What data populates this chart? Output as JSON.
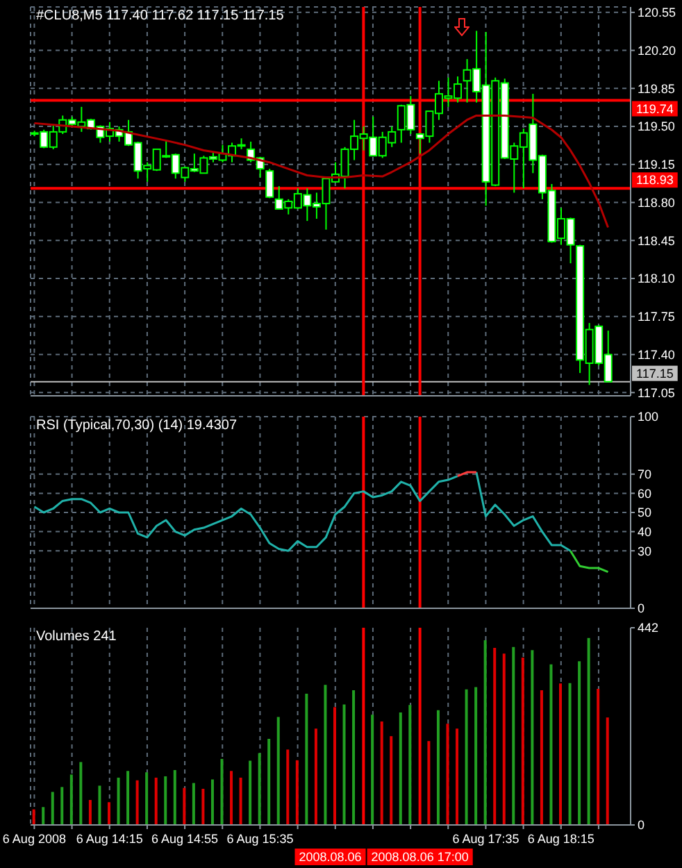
{
  "chart_data": [
    {
      "type": "candlestick",
      "title": "#CLU8,M5 117.40 117.62 117.15 117.15",
      "x": [
        "2008-08-06T13:35",
        "2008-08-06T13:40",
        "2008-08-06T13:45",
        "2008-08-06T13:50",
        "2008-08-06T13:55",
        "2008-08-06T14:00",
        "2008-08-06T14:05",
        "2008-08-06T14:10",
        "2008-08-06T14:15",
        "2008-08-06T14:20",
        "2008-08-06T14:25",
        "2008-08-06T14:30",
        "2008-08-06T14:35",
        "2008-08-06T14:40",
        "2008-08-06T14:45",
        "2008-08-06T14:50",
        "2008-08-06T14:55",
        "2008-08-06T15:00",
        "2008-08-06T15:05",
        "2008-08-06T15:10",
        "2008-08-06T15:15",
        "2008-08-06T15:20",
        "2008-08-06T15:25",
        "2008-08-06T15:30",
        "2008-08-06T15:35",
        "2008-08-06T15:40",
        "2008-08-06T15:45",
        "2008-08-06T15:50",
        "2008-08-06T15:55",
        "2008-08-06T16:00",
        "2008-08-06T16:05",
        "2008-08-06T16:10",
        "2008-08-06T16:15",
        "2008-08-06T16:20",
        "2008-08-06T16:25",
        "2008-08-06T16:30",
        "2008-08-06T16:35",
        "2008-08-06T16:40",
        "2008-08-06T16:45",
        "2008-08-06T16:50",
        "2008-08-06T16:55",
        "2008-08-06T17:00",
        "2008-08-06T17:05",
        "2008-08-06T17:10",
        "2008-08-06T17:15",
        "2008-08-06T17:20",
        "2008-08-06T17:25",
        "2008-08-06T17:30",
        "2008-08-06T17:35",
        "2008-08-06T17:40",
        "2008-08-06T17:45",
        "2008-08-06T17:50",
        "2008-08-06T17:55",
        "2008-08-06T18:00",
        "2008-08-06T18:05",
        "2008-08-06T18:10",
        "2008-08-06T18:15",
        "2008-08-06T18:20",
        "2008-08-06T18:25",
        "2008-08-06T18:30",
        "2008-08-06T18:35",
        "2008-08-06T18:40"
      ],
      "ohlc": [
        [
          119.44,
          119.46,
          119.41,
          119.43
        ],
        [
          119.45,
          119.47,
          119.3,
          119.31
        ],
        [
          119.31,
          119.51,
          119.29,
          119.45
        ],
        [
          119.45,
          119.6,
          119.43,
          119.56
        ],
        [
          119.56,
          119.59,
          119.5,
          119.52
        ],
        [
          119.5,
          119.68,
          119.45,
          119.54
        ],
        [
          119.56,
          119.57,
          119.47,
          119.48
        ],
        [
          119.5,
          119.51,
          119.35,
          119.4
        ],
        [
          119.41,
          119.54,
          119.36,
          119.48
        ],
        [
          119.47,
          119.5,
          119.36,
          119.41
        ],
        [
          119.45,
          119.56,
          119.32,
          119.33
        ],
        [
          119.35,
          119.36,
          119.02,
          119.09
        ],
        [
          119.11,
          119.17,
          118.99,
          119.14
        ],
        [
          119.1,
          119.29,
          119.09,
          119.29
        ],
        [
          119.23,
          119.37,
          119.21,
          119.23
        ],
        [
          119.24,
          119.25,
          119.02,
          119.07
        ],
        [
          119.03,
          119.13,
          118.99,
          119.12
        ],
        [
          119.11,
          119.25,
          119.08,
          119.09
        ],
        [
          119.07,
          119.23,
          119.07,
          119.21
        ],
        [
          119.22,
          119.27,
          119.17,
          119.2
        ],
        [
          119.19,
          119.33,
          119.17,
          119.25
        ],
        [
          119.23,
          119.35,
          119.17,
          119.32
        ],
        [
          119.33,
          119.39,
          119.29,
          119.32
        ],
        [
          119.29,
          119.36,
          119.17,
          119.19
        ],
        [
          119.21,
          119.22,
          119.03,
          119.11
        ],
        [
          119.09,
          119.11,
          118.84,
          118.85
        ],
        [
          118.83,
          118.95,
          118.74,
          118.74
        ],
        [
          118.75,
          118.83,
          118.69,
          118.81
        ],
        [
          118.75,
          118.93,
          118.74,
          118.88
        ],
        [
          118.87,
          118.93,
          118.63,
          118.77
        ],
        [
          118.79,
          118.89,
          118.65,
          118.76
        ],
        [
          118.79,
          119.03,
          118.55,
          119.02
        ],
        [
          118.99,
          119.17,
          118.99,
          119.06
        ],
        [
          119.04,
          119.31,
          118.93,
          119.29
        ],
        [
          119.29,
          119.56,
          119.19,
          119.41
        ],
        [
          119.39,
          119.5,
          119.28,
          119.43
        ],
        [
          119.4,
          119.59,
          119.23,
          119.23
        ],
        [
          119.23,
          119.45,
          119.21,
          119.4
        ],
        [
          119.35,
          119.5,
          119.31,
          119.45
        ],
        [
          119.47,
          119.7,
          119.35,
          119.69
        ],
        [
          119.7,
          119.78,
          119.43,
          119.47
        ],
        [
          119.43,
          119.44,
          119.25,
          119.39
        ],
        [
          119.41,
          119.64,
          119.35,
          119.64
        ],
        [
          119.62,
          119.92,
          119.56,
          119.8
        ],
        [
          119.76,
          119.95,
          119.68,
          119.78
        ],
        [
          119.76,
          119.96,
          119.72,
          119.89
        ],
        [
          119.92,
          120.12,
          119.72,
          120.02
        ],
        [
          120.03,
          120.38,
          119.72,
          119.82
        ],
        [
          119.88,
          120.37,
          118.77,
          118.99
        ],
        [
          118.96,
          119.95,
          118.95,
          119.92
        ],
        [
          119.9,
          119.94,
          119.2,
          119.21
        ],
        [
          119.2,
          119.35,
          118.89,
          119.32
        ],
        [
          119.31,
          119.48,
          118.93,
          119.44
        ],
        [
          119.52,
          119.8,
          119.07,
          119.19
        ],
        [
          119.23,
          119.24,
          118.83,
          118.89
        ],
        [
          118.91,
          118.97,
          118.43,
          118.44
        ],
        [
          118.47,
          118.75,
          118.41,
          118.65
        ],
        [
          118.65,
          118.66,
          118.24,
          118.41
        ],
        [
          118.4,
          118.41,
          117.23,
          117.35
        ],
        [
          117.32,
          117.69,
          117.12,
          117.63
        ],
        [
          117.66,
          117.67,
          117.3,
          117.32
        ],
        [
          117.4,
          117.62,
          117.15,
          117.15
        ]
      ],
      "color": "#00ff00",
      "colors": [
        "#ffffff",
        "#ffffff",
        "#000000",
        "#000000",
        "#ffffff",
        "#000000",
        "#ffffff",
        "#ffffff",
        "#000000",
        "#ffffff",
        "#ffffff",
        "#ffffff",
        "#000000",
        "#000000",
        "#000000",
        "#ffffff",
        "#000000",
        "#ffffff",
        "#000000",
        "#ffffff",
        "#000000",
        "#000000",
        "#ffffff",
        "#ffffff",
        "#ffffff",
        "#ffffff",
        "#ffffff",
        "#000000",
        "#000000",
        "#ffffff",
        "#ffffff",
        "#000000",
        "#000000",
        "#000000",
        "#000000",
        "#000000",
        "#ffffff",
        "#000000",
        "#000000",
        "#000000",
        "#ffffff",
        "#ffffff",
        "#000000",
        "#000000",
        "#000000",
        "#000000",
        "#000000",
        "#ffffff",
        "#ffffff",
        "#000000",
        "#ffffff",
        "#000000",
        "#000000",
        "#ffffff",
        "#ffffff",
        "#ffffff",
        "#000000",
        "#ffffff",
        "#ffffff",
        "#000000",
        "#ffffff",
        "#ffffff"
      ],
      "series": [
        {
          "type": "line",
          "color": "#b40000",
          "x": [
            "2008-08-06T13:35",
            "2008-08-06T13:55",
            "2008-08-06T14:20",
            "2008-08-06T14:45",
            "2008-08-06T14:55",
            "2008-08-06T15:05",
            "2008-08-06T15:30",
            "2008-08-06T15:40",
            "2008-08-06T15:50",
            "2008-08-06T16:00",
            "2008-08-06T16:10",
            "2008-08-06T16:20",
            "2008-08-06T16:30",
            "2008-08-06T16:40",
            "2008-08-06T16:45",
            "2008-08-06T16:55",
            "2008-08-06T17:05",
            "2008-08-06T17:15",
            "2008-08-06T17:25",
            "2008-08-06T17:30",
            "2008-08-06T17:45",
            "2008-08-06T18:00",
            "2008-08-06T18:10",
            "2008-08-06T18:15",
            "2008-08-06T18:20",
            "2008-08-06T18:25",
            "2008-08-06T18:30",
            "2008-08-06T18:35",
            "2008-08-06T18:40"
          ],
          "values": [
            119.53,
            119.5,
            119.46,
            119.37,
            119.33,
            119.28,
            119.21,
            119.17,
            119.11,
            119.05,
            119.03,
            119.03,
            119.05,
            119.04,
            119.08,
            119.17,
            119.28,
            119.43,
            119.56,
            119.6,
            119.6,
            119.58,
            119.47,
            119.4,
            119.28,
            119.14,
            118.98,
            118.8,
            118.57
          ]
        }
      ],
      "xlim": [
        "2008-08-06T13:33",
        "2008-08-06T18:52"
      ],
      "xticks": [
        {
          "value": "2008-08-06T13:35",
          "label": null
        },
        {
          "value": "2008-08-06T13:55",
          "label": null
        },
        {
          "value": "2008-08-06T14:15",
          "label": null
        },
        {
          "value": "2008-08-06T14:35",
          "label": null
        },
        {
          "value": "2008-08-06T14:55",
          "label": null
        },
        {
          "value": "2008-08-06T15:15",
          "label": null
        },
        {
          "value": "2008-08-06T15:35",
          "label": null
        },
        {
          "value": "2008-08-06T15:55",
          "label": null
        },
        {
          "value": "2008-08-06T16:15",
          "label": null
        },
        {
          "value": "2008-08-06T16:35",
          "label": null
        },
        {
          "value": "2008-08-06T16:55",
          "label": null
        },
        {
          "value": "2008-08-06T17:15",
          "label": null
        },
        {
          "value": "2008-08-06T17:35",
          "label": null
        },
        {
          "value": "2008-08-06T17:55",
          "label": null
        },
        {
          "value": "2008-08-06T18:15",
          "label": null
        },
        {
          "value": "2008-08-06T18:35",
          "label": null
        }
      ],
      "ylim": [
        117.02,
        120.6
      ],
      "yticks": [
        117.05,
        {
          "value": 117.4,
          "label": "117.40"
        },
        117.75,
        {
          "value": 118.1,
          "label": "118.10"
        },
        118.45,
        {
          "value": 118.8,
          "label": "118.80"
        },
        119.15,
        {
          "value": 119.5,
          "label": "119.50"
        },
        119.85,
        {
          "value": 120.2,
          "label": "120.20"
        },
        120.55
      ],
      "ref_lines": [
        {
          "axis": "y",
          "value": 119.74,
          "label": "119.74",
          "color": "#ff0000"
        },
        {
          "axis": "y",
          "value": 118.93,
          "label": "118.93",
          "color": "#ff0000"
        },
        {
          "axis": "y",
          "value": 117.15,
          "label": "117.15",
          "color": "#c0c0c0"
        },
        {
          "axis": "x",
          "value": "2008-08-06T16:30",
          "color": "#ff0000"
        },
        {
          "axis": "x",
          "value": "2008-08-06T17:00",
          "color": "#ff0000"
        }
      ],
      "grid": true,
      "tick_labels": "y",
      "marker": "none"
    },
    {
      "type": "line",
      "title": "RSI (Typical,70,30) (14) 19.4307",
      "x": [
        "2008-08-06T13:35",
        "2008-08-06T13:40",
        "2008-08-06T13:45",
        "2008-08-06T13:50",
        "2008-08-06T13:55",
        "2008-08-06T14:00",
        "2008-08-06T14:05",
        "2008-08-06T14:10",
        "2008-08-06T14:15",
        "2008-08-06T14:20",
        "2008-08-06T14:25",
        "2008-08-06T14:30",
        "2008-08-06T14:35",
        "2008-08-06T14:40",
        "2008-08-06T14:45",
        "2008-08-06T14:50",
        "2008-08-06T14:55",
        "2008-08-06T15:00",
        "2008-08-06T15:05",
        "2008-08-06T15:10",
        "2008-08-06T15:15",
        "2008-08-06T15:20",
        "2008-08-06T15:25",
        "2008-08-06T15:30",
        "2008-08-06T15:35",
        "2008-08-06T15:40",
        "2008-08-06T15:45",
        "2008-08-06T15:50",
        "2008-08-06T15:55",
        "2008-08-06T16:00",
        "2008-08-06T16:05",
        "2008-08-06T16:10",
        "2008-08-06T16:15",
        "2008-08-06T16:20",
        "2008-08-06T16:25",
        "2008-08-06T16:30",
        "2008-08-06T16:35",
        "2008-08-06T16:40",
        "2008-08-06T16:45",
        "2008-08-06T16:50",
        "2008-08-06T16:55",
        "2008-08-06T17:00",
        "2008-08-06T17:05",
        "2008-08-06T17:10",
        "2008-08-06T17:15",
        "2008-08-06T17:20",
        "2008-08-06T17:25",
        "2008-08-06T17:30",
        "2008-08-06T17:35",
        "2008-08-06T17:40",
        "2008-08-06T17:45",
        "2008-08-06T17:50",
        "2008-08-06T17:55",
        "2008-08-06T18:00",
        "2008-08-06T18:05",
        "2008-08-06T18:10",
        "2008-08-06T18:15",
        "2008-08-06T18:20",
        "2008-08-06T18:25",
        "2008-08-06T18:30",
        "2008-08-06T18:35",
        "2008-08-06T18:40"
      ],
      "series": [
        {
          "color": "#20b2aa",
          "values": [
            53,
            50,
            52,
            56,
            57,
            57,
            55,
            50,
            52,
            50,
            50,
            39,
            37,
            43,
            46,
            40,
            38,
            41,
            42,
            44,
            46,
            48,
            52,
            49,
            42,
            34,
            31,
            30,
            35,
            32,
            32,
            37,
            49,
            53,
            60,
            61,
            58,
            59,
            61,
            66,
            64,
            56,
            61,
            66,
            67,
            69,
            null,
            71,
            48,
            54,
            49,
            43,
            46,
            48,
            40,
            33,
            33,
            30,
            null,
            null,
            null,
            null
          ]
        },
        {
          "color": "#ff3c3c",
          "values": [
            null,
            null,
            null,
            null,
            null,
            null,
            null,
            null,
            null,
            null,
            null,
            null,
            null,
            null,
            null,
            null,
            null,
            null,
            null,
            null,
            null,
            null,
            null,
            null,
            null,
            null,
            null,
            null,
            null,
            null,
            null,
            null,
            null,
            null,
            null,
            null,
            null,
            null,
            null,
            null,
            null,
            null,
            null,
            null,
            null,
            69,
            71,
            71,
            null,
            null,
            null,
            null,
            null,
            null,
            null,
            null,
            null,
            null,
            null,
            null,
            null,
            null
          ]
        },
        {
          "color": "#32cd32",
          "values": [
            null,
            null,
            null,
            null,
            null,
            null,
            null,
            null,
            null,
            null,
            null,
            null,
            null,
            null,
            null,
            null,
            null,
            null,
            null,
            null,
            null,
            null,
            null,
            null,
            null,
            null,
            null,
            null,
            null,
            null,
            null,
            null,
            null,
            null,
            null,
            null,
            null,
            null,
            null,
            null,
            null,
            null,
            null,
            null,
            null,
            null,
            null,
            null,
            null,
            null,
            null,
            null,
            null,
            null,
            null,
            null,
            null,
            30,
            22,
            21,
            21,
            19
          ]
        }
      ],
      "xlim": [
        "2008-08-06T13:33",
        "2008-08-06T18:52"
      ],
      "xticks": [
        {
          "value": "2008-08-06T13:35",
          "label": null
        },
        {
          "value": "2008-08-06T13:55",
          "label": null
        },
        {
          "value": "2008-08-06T14:15",
          "label": null
        },
        {
          "value": "2008-08-06T14:35",
          "label": null
        },
        {
          "value": "2008-08-06T14:55",
          "label": null
        },
        {
          "value": "2008-08-06T15:15",
          "label": null
        },
        {
          "value": "2008-08-06T15:35",
          "label": null
        },
        {
          "value": "2008-08-06T15:55",
          "label": null
        },
        {
          "value": "2008-08-06T16:15",
          "label": null
        },
        {
          "value": "2008-08-06T16:35",
          "label": null
        },
        {
          "value": "2008-08-06T16:55",
          "label": null
        },
        {
          "value": "2008-08-06T17:15",
          "label": null
        },
        {
          "value": "2008-08-06T17:35",
          "label": null
        },
        {
          "value": "2008-08-06T17:55",
          "label": null
        },
        {
          "value": "2008-08-06T18:15",
          "label": null
        },
        {
          "value": "2008-08-06T18:35",
          "label": null
        }
      ],
      "ylim": [
        0,
        100
      ],
      "yticks": [
        0,
        30,
        40,
        50,
        60,
        70,
        100
      ],
      "ref_lines": [
        {
          "axis": "x",
          "value": "2008-08-06T16:30",
          "color": "#ff0000"
        },
        {
          "axis": "x",
          "value": "2008-08-06T17:00",
          "color": "#ff0000"
        }
      ],
      "grid": true,
      "tick_labels": "y",
      "marker": "none"
    },
    {
      "type": "bar",
      "title": "Volumes 241",
      "x": [
        "2008-08-06T13:35",
        "2008-08-06T13:40",
        "2008-08-06T13:45",
        "2008-08-06T13:50",
        "2008-08-06T13:55",
        "2008-08-06T14:00",
        "2008-08-06T14:05",
        "2008-08-06T14:10",
        "2008-08-06T14:15",
        "2008-08-06T14:20",
        "2008-08-06T14:25",
        "2008-08-06T14:30",
        "2008-08-06T14:35",
        "2008-08-06T14:40",
        "2008-08-06T14:45",
        "2008-08-06T14:50",
        "2008-08-06T14:55",
        "2008-08-06T15:00",
        "2008-08-06T15:05",
        "2008-08-06T15:10",
        "2008-08-06T15:15",
        "2008-08-06T15:20",
        "2008-08-06T15:25",
        "2008-08-06T15:30",
        "2008-08-06T15:35",
        "2008-08-06T15:40",
        "2008-08-06T15:45",
        "2008-08-06T15:50",
        "2008-08-06T15:55",
        "2008-08-06T16:00",
        "2008-08-06T16:05",
        "2008-08-06T16:10",
        "2008-08-06T16:15",
        "2008-08-06T16:20",
        "2008-08-06T16:25",
        "2008-08-06T16:30",
        "2008-08-06T16:35",
        "2008-08-06T16:40",
        "2008-08-06T16:45",
        "2008-08-06T16:50",
        "2008-08-06T16:55",
        "2008-08-06T17:00",
        "2008-08-06T17:05",
        "2008-08-06T17:10",
        "2008-08-06T17:15",
        "2008-08-06T17:20",
        "2008-08-06T17:25",
        "2008-08-06T17:30",
        "2008-08-06T17:35",
        "2008-08-06T17:40",
        "2008-08-06T17:45",
        "2008-08-06T17:50",
        "2008-08-06T17:55",
        "2008-08-06T18:00",
        "2008-08-06T18:05",
        "2008-08-06T18:10",
        "2008-08-06T18:15",
        "2008-08-06T18:20",
        "2008-08-06T18:25",
        "2008-08-06T18:30",
        "2008-08-06T18:35",
        "2008-08-06T18:40"
      ],
      "values": [
        35,
        40,
        74,
        85,
        113,
        141,
        56,
        88,
        51,
        106,
        121,
        100,
        118,
        106,
        109,
        123,
        83,
        94,
        81,
        102,
        148,
        121,
        106,
        144,
        161,
        193,
        242,
        169,
        145,
        294,
        216,
        314,
        264,
        270,
        302,
        null,
        247,
        232,
        199,
        252,
        269,
        null,
        188,
        257,
        227,
        216,
        304,
        309,
        414,
        397,
        384,
        399,
        375,
        392,
        302,
        360,
        317,
        318,
        367,
        419,
        305,
        241
      ],
      "colors": [
        "#e00000",
        "#22a022",
        "#22a022",
        "#22a022",
        "#22a022",
        "#22a022",
        "#e00000",
        "#22a022",
        "#e00000",
        "#22a022",
        "#22a022",
        "#e00000",
        "#22a022",
        "#e00000",
        "#22a022",
        "#22a022",
        "#e00000",
        "#22a022",
        "#e00000",
        "#22a022",
        "#22a022",
        "#e00000",
        "#e00000",
        "#22a022",
        "#22a022",
        "#22a022",
        "#22a022",
        "#e00000",
        "#e00000",
        "#22a022",
        "#e00000",
        "#22a022",
        "#e00000",
        "#22a022",
        "#22a022",
        null,
        "#22a022",
        "#e00000",
        "#e00000",
        "#22a022",
        "#22a022",
        null,
        "#e00000",
        "#22a022",
        "#e00000",
        "#e00000",
        "#22a022",
        "#22a022",
        "#22a022",
        "#e00000",
        "#e00000",
        "#22a022",
        "#e00000",
        "#22a022",
        "#e00000",
        "#22a022",
        "#e00000",
        "#22a022",
        "#22a022",
        "#22a022",
        "#e00000",
        "#e00000"
      ],
      "xlim": [
        "2008-08-06T13:33",
        "2008-08-06T18:52"
      ],
      "xticks": [
        {
          "value": "2008-08-06T13:35",
          "label": "6 Aug 2008"
        },
        {
          "value": "2008-08-06T13:55",
          "label": null
        },
        {
          "value": "2008-08-06T14:15",
          "label": "6 Aug 14:15"
        },
        {
          "value": "2008-08-06T14:35",
          "label": null
        },
        {
          "value": "2008-08-06T14:55",
          "label": "6 Aug 14:55"
        },
        {
          "value": "2008-08-06T15:15",
          "label": null
        },
        {
          "value": "2008-08-06T15:35",
          "label": "6 Aug 15:35"
        },
        {
          "value": "2008-08-06T15:55",
          "label": null
        },
        {
          "value": "2008-08-06T16:15",
          "label": null
        },
        {
          "value": "2008-08-06T16:35",
          "label": null
        },
        {
          "value": "2008-08-06T16:55",
          "label": null
        },
        {
          "value": "2008-08-06T17:15",
          "label": null
        },
        {
          "value": "2008-08-06T17:35",
          "label": "6 Aug 17:35"
        },
        {
          "value": "2008-08-06T17:55",
          "label": null
        },
        {
          "value": "2008-08-06T18:15",
          "label": "6 Aug 18:15"
        },
        {
          "value": "2008-08-06T18:35",
          "label": null
        }
      ],
      "ylim": [
        0,
        442
      ],
      "yticks": [
        0,
        442
      ],
      "ref_lines": [
        {
          "axis": "x",
          "value": "2008-08-06T16:30",
          "label": "2008.08.06",
          "color": "#ff0000"
        },
        {
          "axis": "x",
          "value": "2008-08-06T17:00",
          "label": "2008.08.06 17:00",
          "color": "#ff0000"
        }
      ],
      "grid": "x"
    }
  ]
}
